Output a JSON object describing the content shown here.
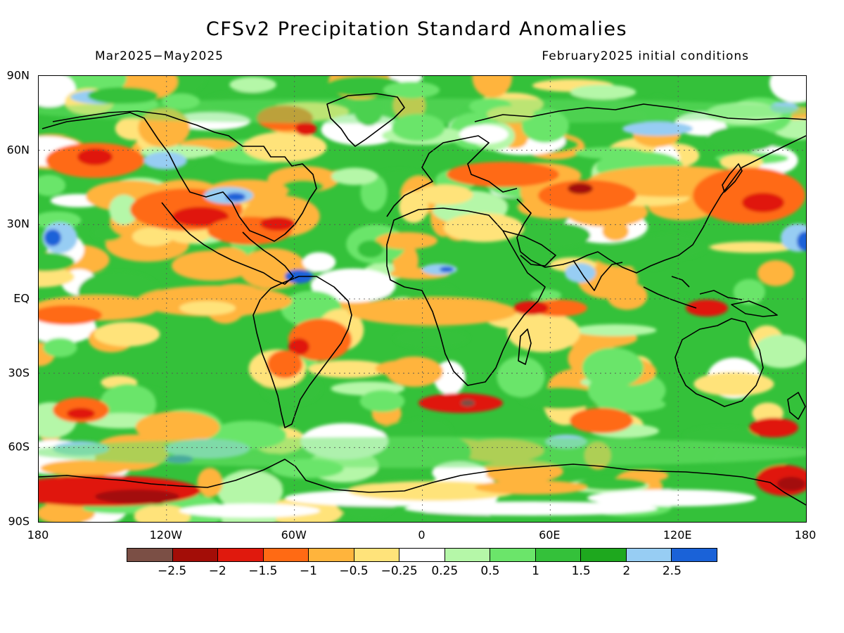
{
  "title": "CFSv2 Precipitation Standard Anomalies",
  "period": "Mar2025−May2025",
  "initial_conditions": "February2025 initial conditions",
  "lat_labels": [
    "90N",
    "60N",
    "30N",
    "EQ",
    "30S",
    "60S",
    "90S"
  ],
  "lon_labels": [
    "180",
    "120W",
    "60W",
    "0",
    "60E",
    "120E",
    "180"
  ],
  "legend_labels": [
    "−2.5",
    "−2",
    "−1.5",
    "−1",
    "−0.5",
    "−0.25",
    "0.25",
    "0.5",
    "1",
    "1.5",
    "2",
    "2.5"
  ],
  "legend_colors": [
    "#7b4f45",
    "#a30d07",
    "#e0190d",
    "#ff6a14",
    "#ffb43c",
    "#ffe37a",
    "#ffffff",
    "#b5f7a8",
    "#6be56a",
    "#34c13a",
    "#1ea81e",
    "#97cdf3",
    "#1a62d8"
  ],
  "colors": {
    "map_background": "#34c13a",
    "coastline": "#000000"
  }
}
